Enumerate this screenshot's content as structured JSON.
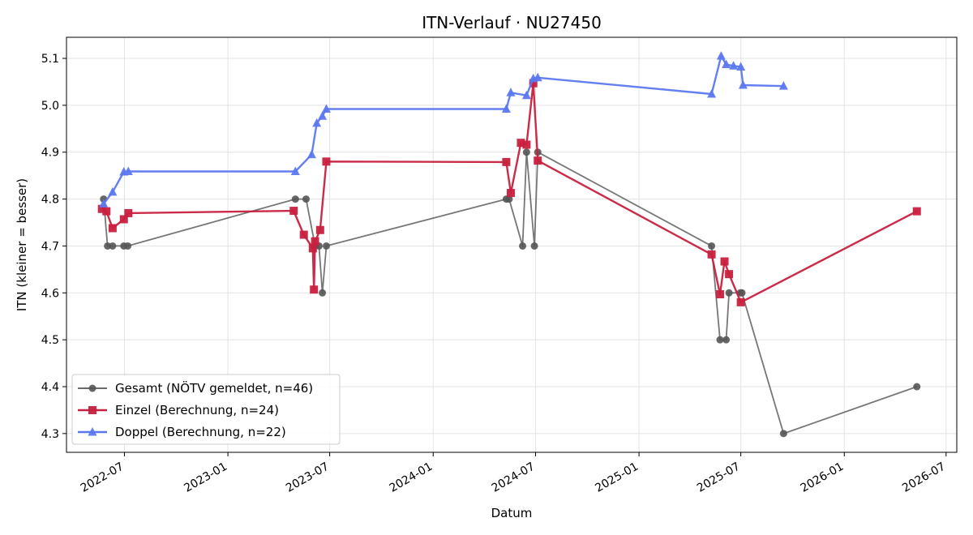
{
  "chart_data": {
    "type": "line",
    "title": "ITN-Verlauf · NU27450",
    "xlabel": "Datum",
    "ylabel": "ITN  (kleiner = besser)",
    "xlim": [
      "2022-03-20",
      "2026-07-20"
    ],
    "ylim": [
      4.26,
      5.145
    ],
    "x_ticks": [
      "2022-07",
      "2023-01",
      "2023-07",
      "2024-01",
      "2024-07",
      "2025-01",
      "2025-07",
      "2026-01",
      "2026-07"
    ],
    "y_ticks": [
      4.3,
      4.4,
      4.5,
      4.6,
      4.7,
      4.8,
      4.9,
      5.0,
      5.1
    ],
    "grid": true,
    "legend_position": "lower-left",
    "series": [
      {
        "name": "Gesamt (NÖTV gemeldet, n=46)",
        "color": "#555555",
        "marker": "circle",
        "points": [
          [
            "2022-05-25",
            4.8
          ],
          [
            "2022-06-01",
            4.7
          ],
          [
            "2022-06-10",
            4.7
          ],
          [
            "2022-06-30",
            4.7
          ],
          [
            "2022-07-07",
            4.7
          ],
          [
            "2023-05-01",
            4.8
          ],
          [
            "2023-05-20",
            4.8
          ],
          [
            "2023-06-05",
            4.7
          ],
          [
            "2023-06-12",
            4.7
          ],
          [
            "2023-06-18",
            4.6
          ],
          [
            "2023-06-25",
            4.7
          ],
          [
            "2024-05-10",
            4.8
          ],
          [
            "2024-05-15",
            4.8
          ],
          [
            "2024-06-08",
            4.7
          ],
          [
            "2024-06-15",
            4.9
          ],
          [
            "2024-06-29",
            4.7
          ],
          [
            "2024-07-05",
            4.9
          ],
          [
            "2025-05-10",
            4.7
          ],
          [
            "2025-05-25",
            4.5
          ],
          [
            "2025-06-05",
            4.5
          ],
          [
            "2025-06-10",
            4.6
          ],
          [
            "2025-06-30",
            4.6
          ],
          [
            "2025-07-03",
            4.6
          ],
          [
            "2025-09-15",
            4.3
          ],
          [
            "2026-05-10",
            4.4
          ]
        ]
      },
      {
        "name": "Einzel (Berechnung, n=24)",
        "color": "#c8203e",
        "marker": "square",
        "points": [
          [
            "2022-05-22",
            4.779
          ],
          [
            "2022-05-30",
            4.774
          ],
          [
            "2022-06-10",
            4.738
          ],
          [
            "2022-06-30",
            4.757
          ],
          [
            "2022-07-08",
            4.77
          ],
          [
            "2023-04-28",
            4.775
          ],
          [
            "2023-05-16",
            4.724
          ],
          [
            "2023-06-01",
            4.695
          ],
          [
            "2023-06-03",
            4.607
          ],
          [
            "2023-06-05",
            4.71
          ],
          [
            "2023-06-14",
            4.734
          ],
          [
            "2023-06-25",
            4.88
          ],
          [
            "2024-05-10",
            4.879
          ],
          [
            "2024-05-18",
            4.813
          ],
          [
            "2024-06-05",
            4.92
          ],
          [
            "2024-06-15",
            4.916
          ],
          [
            "2024-06-27",
            5.047
          ],
          [
            "2024-07-05",
            4.882
          ],
          [
            "2025-05-10",
            4.682
          ],
          [
            "2025-05-25",
            4.597
          ],
          [
            "2025-06-02",
            4.667
          ],
          [
            "2025-06-10",
            4.64
          ],
          [
            "2025-07-01",
            4.58
          ],
          [
            "2026-05-10",
            4.774
          ]
        ]
      },
      {
        "name": "Doppel (Berechnung, n=22)",
        "color": "#5b78f0",
        "marker": "triangle",
        "points": [
          [
            "2022-05-25",
            4.79
          ],
          [
            "2022-06-10",
            4.815
          ],
          [
            "2022-06-30",
            4.858
          ],
          [
            "2022-07-08",
            4.859
          ],
          [
            "2023-05-01",
            4.859
          ],
          [
            "2023-05-30",
            4.895
          ],
          [
            "2023-06-08",
            4.962
          ],
          [
            "2023-06-18",
            4.977
          ],
          [
            "2023-06-25",
            4.992
          ],
          [
            "2024-05-10",
            4.992
          ],
          [
            "2024-05-18",
            5.027
          ],
          [
            "2024-06-15",
            5.021
          ],
          [
            "2024-06-27",
            5.057
          ],
          [
            "2024-07-05",
            5.059
          ],
          [
            "2025-05-10",
            5.024
          ],
          [
            "2025-05-27",
            5.105
          ],
          [
            "2025-06-05",
            5.087
          ],
          [
            "2025-06-18",
            5.084
          ],
          [
            "2025-07-01",
            5.082
          ],
          [
            "2025-07-05",
            5.043
          ],
          [
            "2025-09-15",
            5.041
          ]
        ]
      }
    ]
  }
}
